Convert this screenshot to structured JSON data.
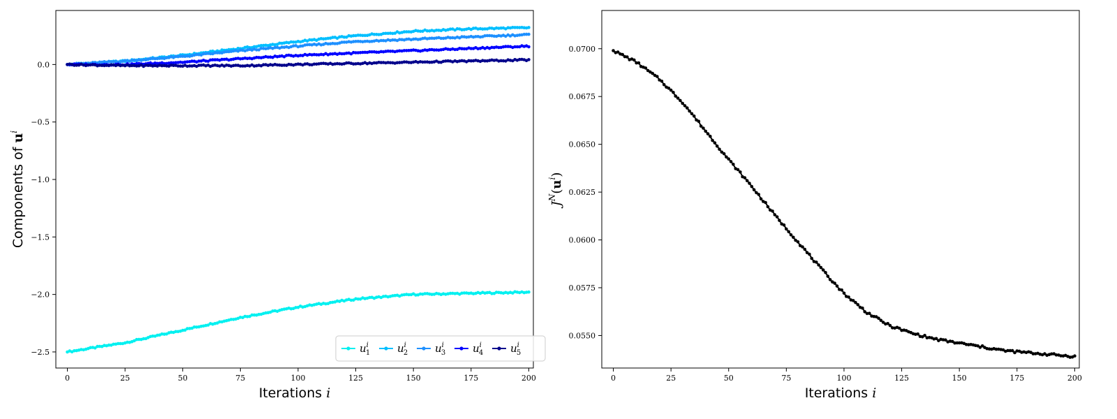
{
  "chart_data": [
    {
      "type": "line",
      "xlabel": "Iterations i",
      "ylabel": "Components of u^i",
      "xlim": [
        -5,
        202
      ],
      "ylim": [
        -2.64,
        0.47
      ],
      "x_ticks": [
        0,
        25,
        50,
        75,
        100,
        125,
        150,
        175,
        200
      ],
      "y_ticks": [
        -2.5,
        -2.0,
        -1.5,
        -1.0,
        -0.5,
        0.0
      ],
      "y_tick_labels": [
        "−2.5",
        "−2.0",
        "−1.5",
        "−1.0",
        "−0.5",
        "0.0"
      ],
      "grid": false,
      "legend": "lower-right",
      "x": [
        0,
        25,
        50,
        75,
        100,
        125,
        150,
        175,
        200
      ],
      "series": [
        {
          "name": "u_1^i",
          "color": "#00f0f0",
          "values": [
            -2.5,
            -2.42,
            -2.31,
            -2.2,
            -2.11,
            -2.04,
            -2.0,
            -1.99,
            -1.98
          ]
        },
        {
          "name": "u_2^i",
          "color": "#00bfff",
          "values": [
            0.0,
            0.03,
            0.08,
            0.14,
            0.2,
            0.25,
            0.29,
            0.31,
            0.32
          ]
        },
        {
          "name": "u_3^i",
          "color": "#1e90ff",
          "values": [
            0.0,
            0.03,
            0.07,
            0.12,
            0.16,
            0.2,
            0.22,
            0.24,
            0.26
          ]
        },
        {
          "name": "u_4^i",
          "color": "#0000ff",
          "values": [
            0.0,
            0.0,
            0.02,
            0.05,
            0.08,
            0.1,
            0.12,
            0.14,
            0.16
          ]
        },
        {
          "name": "u_5^i",
          "color": "#00008b",
          "values": [
            0.0,
            -0.01,
            -0.01,
            -0.01,
            0.0,
            0.01,
            0.02,
            0.03,
            0.04
          ]
        }
      ]
    },
    {
      "type": "line",
      "xlabel": "Iterations i",
      "ylabel": "J^N(u^i)",
      "xlim": [
        -5,
        202
      ],
      "ylim": [
        0.0533,
        0.072
      ],
      "x_ticks": [
        0,
        25,
        50,
        75,
        100,
        125,
        150,
        175,
        200
      ],
      "y_ticks": [
        0.055,
        0.0575,
        0.06,
        0.0625,
        0.065,
        0.0675,
        0.07
      ],
      "y_tick_labels": [
        "0.0550",
        "0.0575",
        "0.0600",
        "0.0625",
        "0.0650",
        "0.0675",
        "0.0700"
      ],
      "grid": false,
      "x": [
        0,
        10,
        20,
        30,
        40,
        50,
        60,
        70,
        80,
        90,
        100,
        110,
        120,
        130,
        140,
        150,
        160,
        170,
        180,
        190,
        200
      ],
      "series": [
        {
          "color": "#000000",
          "values": [
            0.0699,
            0.0693,
            0.0684,
            0.0672,
            0.0657,
            0.0642,
            0.0628,
            0.0613,
            0.0599,
            0.0585,
            0.0572,
            0.0562,
            0.0555,
            0.0551,
            0.0548,
            0.0546,
            0.0544,
            0.0542,
            0.0541,
            0.054,
            0.0539
          ]
        }
      ]
    }
  ]
}
